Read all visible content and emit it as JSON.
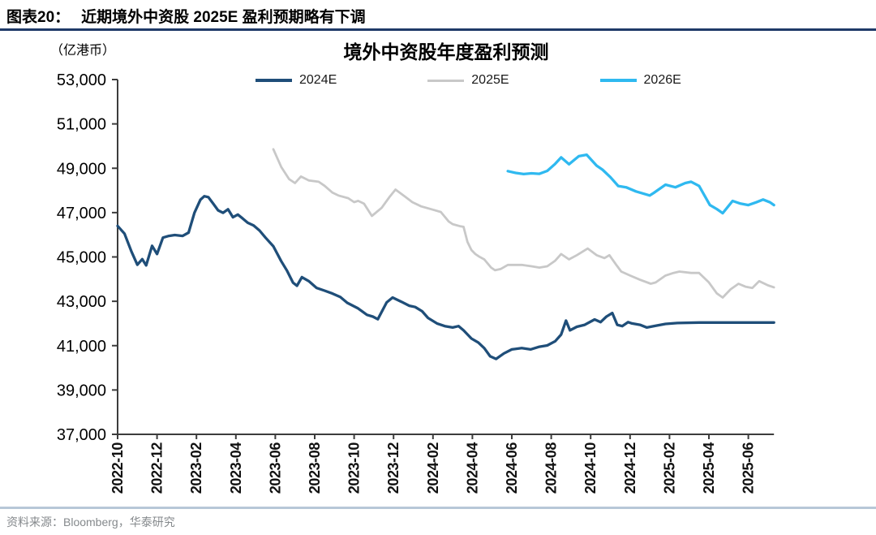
{
  "header": {
    "figure_label": "图表20：",
    "title": "近期境外中资股 2025E 盈利预期略有下调"
  },
  "footer": {
    "source": "资料来源：Bloomberg，华泰研究"
  },
  "colors": {
    "top_rule": "#1f3a68",
    "bottom_rule": "#b7c7d7",
    "axis": "#3c3c3c",
    "series_2024e": "#1f4e79",
    "series_2025e": "#c8c8c8",
    "series_2026e": "#2fb9f0"
  },
  "chart_data": {
    "type": "line",
    "title": "境外中资股年度盈利预测",
    "unit_label": "（亿港币）",
    "ylabel": "亿港币",
    "ylim": [
      37000,
      53000
    ],
    "y_tick_step": 2000,
    "y_tick_labels": [
      "37,000",
      "39,000",
      "41,000",
      "43,000",
      "45,000",
      "47,000",
      "49,000",
      "51,000",
      "53,000"
    ],
    "x_unit": "months_since_2022-10",
    "x_tick_interval_months": 2,
    "x_tick_labels": [
      "2022-10",
      "2022-12",
      "2023-02",
      "2023-04",
      "2023-06",
      "2023-08",
      "2023-10",
      "2023-12",
      "2024-02",
      "2024-04",
      "2024-06",
      "2024-08",
      "2024-10",
      "2024-12",
      "2025-02",
      "2025-04",
      "2025-06"
    ],
    "x_data_end_month": 33.3,
    "grid": false,
    "legend_position": "top",
    "series": [
      {
        "name": "2024E",
        "color": "#1f4e79",
        "points": [
          [
            0,
            46400
          ],
          [
            0.35,
            46050
          ],
          [
            0.7,
            45250
          ],
          [
            1.0,
            44650
          ],
          [
            1.25,
            44900
          ],
          [
            1.45,
            44620
          ],
          [
            1.75,
            45500
          ],
          [
            2.0,
            45130
          ],
          [
            2.3,
            45870
          ],
          [
            2.6,
            45950
          ],
          [
            2.9,
            45990
          ],
          [
            3.3,
            45950
          ],
          [
            3.6,
            46100
          ],
          [
            3.9,
            47000
          ],
          [
            4.2,
            47580
          ],
          [
            4.4,
            47740
          ],
          [
            4.6,
            47700
          ],
          [
            4.85,
            47400
          ],
          [
            5.1,
            47100
          ],
          [
            5.35,
            46990
          ],
          [
            5.6,
            47150
          ],
          [
            5.85,
            46790
          ],
          [
            6.1,
            46910
          ],
          [
            6.35,
            46730
          ],
          [
            6.6,
            46540
          ],
          [
            6.9,
            46420
          ],
          [
            7.2,
            46190
          ],
          [
            7.5,
            45870
          ],
          [
            7.9,
            45480
          ],
          [
            8.3,
            44810
          ],
          [
            8.6,
            44370
          ],
          [
            8.9,
            43840
          ],
          [
            9.1,
            43700
          ],
          [
            9.35,
            44090
          ],
          [
            9.7,
            43910
          ],
          [
            10.1,
            43600
          ],
          [
            10.5,
            43480
          ],
          [
            10.9,
            43350
          ],
          [
            11.3,
            43190
          ],
          [
            11.65,
            42930
          ],
          [
            12.2,
            42680
          ],
          [
            12.65,
            42390
          ],
          [
            12.95,
            42310
          ],
          [
            13.2,
            42190
          ],
          [
            13.65,
            42950
          ],
          [
            13.95,
            43170
          ],
          [
            14.4,
            42980
          ],
          [
            14.8,
            42800
          ],
          [
            15.1,
            42740
          ],
          [
            15.45,
            42550
          ],
          [
            15.75,
            42250
          ],
          [
            16.2,
            42000
          ],
          [
            16.6,
            41880
          ],
          [
            17.0,
            41820
          ],
          [
            17.3,
            41880
          ],
          [
            17.55,
            41690
          ],
          [
            17.95,
            41320
          ],
          [
            18.3,
            41140
          ],
          [
            18.6,
            40890
          ],
          [
            18.9,
            40520
          ],
          [
            19.2,
            40400
          ],
          [
            19.6,
            40650
          ],
          [
            20.0,
            40830
          ],
          [
            20.5,
            40890
          ],
          [
            20.95,
            40830
          ],
          [
            21.4,
            40950
          ],
          [
            21.8,
            41010
          ],
          [
            22.2,
            41200
          ],
          [
            22.5,
            41500
          ],
          [
            22.75,
            42130
          ],
          [
            22.95,
            41690
          ],
          [
            23.3,
            41850
          ],
          [
            23.7,
            41940
          ],
          [
            24.2,
            42180
          ],
          [
            24.5,
            42060
          ],
          [
            24.8,
            42310
          ],
          [
            25.1,
            42470
          ],
          [
            25.35,
            41940
          ],
          [
            25.6,
            41880
          ],
          [
            25.9,
            42060
          ],
          [
            26.1,
            42000
          ],
          [
            26.5,
            41940
          ],
          [
            26.85,
            41820
          ],
          [
            27.3,
            41900
          ],
          [
            27.8,
            41980
          ],
          [
            28.4,
            42020
          ],
          [
            29.5,
            42040
          ],
          [
            31.0,
            42040
          ],
          [
            33.3,
            42040
          ]
        ]
      },
      {
        "name": "2025E",
        "color": "#c8c8c8",
        "points": [
          [
            7.9,
            49860
          ],
          [
            8.3,
            49060
          ],
          [
            8.7,
            48510
          ],
          [
            9.0,
            48330
          ],
          [
            9.3,
            48630
          ],
          [
            9.7,
            48450
          ],
          [
            10.2,
            48390
          ],
          [
            10.5,
            48210
          ],
          [
            10.9,
            47900
          ],
          [
            11.2,
            47770
          ],
          [
            11.7,
            47650
          ],
          [
            12.0,
            47470
          ],
          [
            12.2,
            47530
          ],
          [
            12.5,
            47400
          ],
          [
            12.9,
            46850
          ],
          [
            13.4,
            47220
          ],
          [
            13.8,
            47710
          ],
          [
            14.1,
            48040
          ],
          [
            14.6,
            47710
          ],
          [
            14.95,
            47470
          ],
          [
            15.4,
            47280
          ],
          [
            16.0,
            47130
          ],
          [
            16.4,
            47030
          ],
          [
            16.8,
            46600
          ],
          [
            17.0,
            46480
          ],
          [
            17.4,
            46380
          ],
          [
            17.55,
            46360
          ],
          [
            17.75,
            45680
          ],
          [
            17.95,
            45310
          ],
          [
            18.15,
            45130
          ],
          [
            18.35,
            45010
          ],
          [
            18.6,
            44890
          ],
          [
            18.95,
            44520
          ],
          [
            19.15,
            44400
          ],
          [
            19.45,
            44460
          ],
          [
            19.8,
            44640
          ],
          [
            20.5,
            44640
          ],
          [
            21.0,
            44580
          ],
          [
            21.4,
            44520
          ],
          [
            21.8,
            44580
          ],
          [
            22.2,
            44830
          ],
          [
            22.5,
            45130
          ],
          [
            22.9,
            44890
          ],
          [
            23.3,
            45080
          ],
          [
            23.85,
            45380
          ],
          [
            24.3,
            45080
          ],
          [
            24.7,
            44950
          ],
          [
            24.95,
            45080
          ],
          [
            25.3,
            44640
          ],
          [
            25.55,
            44340
          ],
          [
            26.0,
            44160
          ],
          [
            26.5,
            43970
          ],
          [
            27.05,
            43790
          ],
          [
            27.3,
            43850
          ],
          [
            27.8,
            44160
          ],
          [
            28.2,
            44280
          ],
          [
            28.5,
            44340
          ],
          [
            29.1,
            44280
          ],
          [
            29.5,
            44280
          ],
          [
            30.0,
            43850
          ],
          [
            30.4,
            43360
          ],
          [
            30.7,
            43170
          ],
          [
            31.1,
            43540
          ],
          [
            31.5,
            43790
          ],
          [
            31.85,
            43660
          ],
          [
            32.2,
            43600
          ],
          [
            32.55,
            43910
          ],
          [
            33.0,
            43720
          ],
          [
            33.3,
            43630
          ]
        ]
      },
      {
        "name": "2026E",
        "color": "#2fb9f0",
        "points": [
          [
            19.8,
            48870
          ],
          [
            20.2,
            48790
          ],
          [
            20.6,
            48740
          ],
          [
            21.0,
            48770
          ],
          [
            21.4,
            48750
          ],
          [
            21.8,
            48880
          ],
          [
            22.2,
            49200
          ],
          [
            22.5,
            49490
          ],
          [
            22.9,
            49180
          ],
          [
            23.4,
            49545
          ],
          [
            23.8,
            49610
          ],
          [
            24.3,
            49120
          ],
          [
            24.6,
            48935
          ],
          [
            25.0,
            48600
          ],
          [
            25.4,
            48200
          ],
          [
            25.8,
            48140
          ],
          [
            26.3,
            47955
          ],
          [
            27.0,
            47770
          ],
          [
            27.2,
            47890
          ],
          [
            27.8,
            48260
          ],
          [
            28.3,
            48140
          ],
          [
            28.8,
            48330
          ],
          [
            29.1,
            48390
          ],
          [
            29.5,
            48200
          ],
          [
            30.05,
            47340
          ],
          [
            30.4,
            47160
          ],
          [
            30.7,
            46975
          ],
          [
            31.2,
            47525
          ],
          [
            31.6,
            47405
          ],
          [
            32.0,
            47340
          ],
          [
            32.4,
            47465
          ],
          [
            32.75,
            47590
          ],
          [
            33.1,
            47465
          ],
          [
            33.3,
            47340
          ]
        ]
      }
    ]
  }
}
